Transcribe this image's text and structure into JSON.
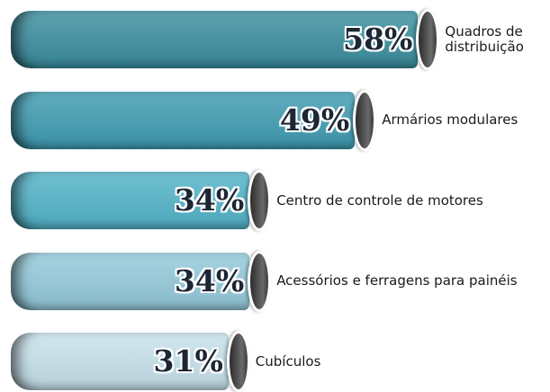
{
  "chart_data": {
    "type": "bar",
    "orientation": "horizontal",
    "categories": [
      "Quadros de distribuição",
      "Armários modulares",
      "Centro de controle de motores",
      "Acessórios e ferragens para painéis",
      "Cubículos"
    ],
    "values": [
      58,
      49,
      34,
      34,
      31
    ],
    "value_labels": [
      "58%",
      "49%",
      "34%",
      "34%",
      "31%"
    ],
    "colors": [
      "#3b8e9f",
      "#3f9cb2",
      "#52b4c9",
      "#94cadb",
      "#c7e2ec"
    ]
  }
}
